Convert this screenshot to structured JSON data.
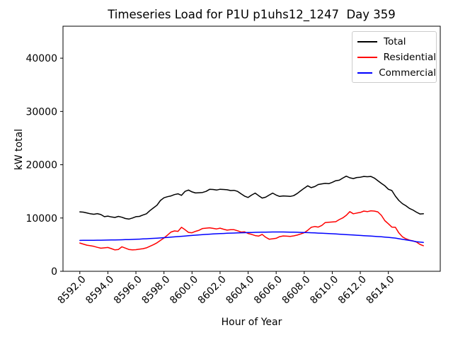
{
  "title": "Timeseries Load for P1U p1uhs12_1247  Day 359",
  "chart_data": {
    "type": "line",
    "title": "Timeseries Load for P1U p1uhs12_1247  Day 359",
    "xlabel": "Hour of Year",
    "ylabel": "kW total",
    "xlim": [
      8590.8,
      8617.7
    ],
    "ylim": [
      0,
      46000
    ],
    "grid": false,
    "legend_position": "upper right",
    "x_ticks": [
      8592,
      8594,
      8596,
      8598,
      8600,
      8602,
      8604,
      8606,
      8608,
      8610,
      8612,
      8614
    ],
    "x_tick_labels": [
      "8592.0",
      "8594.0",
      "8596.0",
      "8598.0",
      "8600.0",
      "8602.0",
      "8604.0",
      "8606.0",
      "8608.0",
      "8610.0",
      "8612.0",
      "8614.0"
    ],
    "y_ticks": [
      0,
      10000,
      20000,
      30000,
      40000
    ],
    "y_tick_labels": [
      "0",
      "10000",
      "20000",
      "30000",
      "40000"
    ],
    "x_start": 8592.0,
    "x_step": 0.25,
    "series": [
      {
        "name": "Total",
        "color": "#000000",
        "values": [
          11150,
          11100,
          10950,
          10800,
          10700,
          10820,
          10650,
          10250,
          10350,
          10200,
          10100,
          10300,
          10150,
          9900,
          9800,
          10000,
          10250,
          10300,
          10550,
          10800,
          11400,
          11900,
          12400,
          13300,
          13800,
          14000,
          14150,
          14400,
          14550,
          14250,
          15000,
          15250,
          14900,
          14700,
          14750,
          14800,
          15000,
          15380,
          15350,
          15250,
          15400,
          15350,
          15300,
          15150,
          15200,
          15000,
          14550,
          14100,
          13850,
          14300,
          14680,
          14200,
          13750,
          13900,
          14300,
          14680,
          14300,
          14050,
          14150,
          14100,
          14050,
          14200,
          14600,
          15100,
          15600,
          16050,
          15700,
          15900,
          16280,
          16400,
          16500,
          16450,
          16700,
          17000,
          17100,
          17500,
          17850,
          17550,
          17400,
          17600,
          17650,
          17800,
          17750,
          17800,
          17500,
          17000,
          16500,
          16050,
          15400,
          15150,
          14100,
          13300,
          12700,
          12300,
          11800,
          11500,
          11100,
          10750,
          10800
        ]
      },
      {
        "name": "Residential",
        "color": "#ff0000",
        "values": [
          5300,
          5100,
          4910,
          4800,
          4680,
          4500,
          4330,
          4400,
          4470,
          4250,
          4010,
          4100,
          4600,
          4350,
          4100,
          4010,
          4050,
          4150,
          4240,
          4400,
          4690,
          5000,
          5350,
          5800,
          6250,
          6800,
          7360,
          7580,
          7500,
          8250,
          7800,
          7300,
          7230,
          7500,
          7700,
          8030,
          8100,
          8160,
          8050,
          7950,
          8100,
          7900,
          7720,
          7800,
          7810,
          7600,
          7360,
          7400,
          7100,
          6920,
          6700,
          6610,
          6920,
          6400,
          6020,
          6100,
          6190,
          6500,
          6640,
          6600,
          6550,
          6650,
          6800,
          7000,
          7250,
          7700,
          8250,
          8400,
          8300,
          8600,
          9150,
          9200,
          9250,
          9300,
          9700,
          10030,
          10500,
          11200,
          10800,
          10930,
          11050,
          11300,
          11200,
          11350,
          11300,
          11150,
          10500,
          9500,
          8920,
          8300,
          8250,
          7200,
          6470,
          6100,
          5850,
          5700,
          5500,
          5050,
          4800
        ]
      },
      {
        "name": "Commercial",
        "color": "#0000ff",
        "values": [
          5800,
          5805,
          5810,
          5815,
          5820,
          5830,
          5840,
          5850,
          5860,
          5875,
          5890,
          5905,
          5920,
          5940,
          5960,
          5985,
          6010,
          6040,
          6070,
          6105,
          6140,
          6180,
          6220,
          6265,
          6310,
          6360,
          6410,
          6460,
          6510,
          6565,
          6620,
          6675,
          6730,
          6780,
          6830,
          6880,
          6925,
          6965,
          7005,
          7040,
          7075,
          7105,
          7135,
          7160,
          7185,
          7210,
          7230,
          7250,
          7270,
          7290,
          7310,
          7325,
          7340,
          7355,
          7370,
          7380,
          7385,
          7385,
          7380,
          7370,
          7355,
          7340,
          7320,
          7300,
          7280,
          7255,
          7230,
          7200,
          7170,
          7140,
          7110,
          7075,
          7040,
          7005,
          6970,
          6930,
          6890,
          6850,
          6810,
          6770,
          6730,
          6690,
          6650,
          6610,
          6570,
          6520,
          6470,
          6420,
          6370,
          6300,
          6230,
          6120,
          6000,
          5900,
          5800,
          5680,
          5560,
          5480,
          5420
        ]
      }
    ]
  }
}
